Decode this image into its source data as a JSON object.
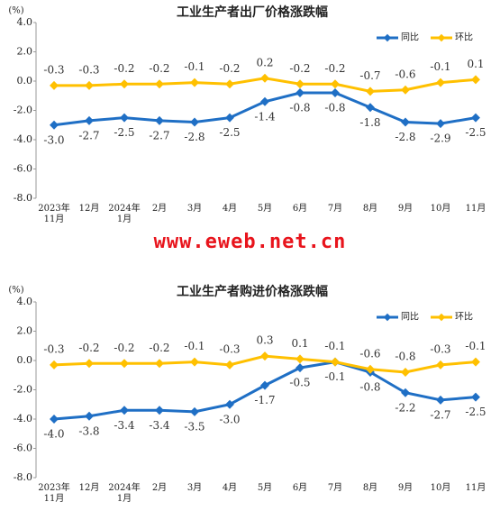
{
  "watermark": "www.eweb.net.cn",
  "chart_data": [
    {
      "type": "line",
      "title": "工业生产者出厂价格涨跌幅",
      "y_label": "(%)",
      "categories": [
        "2023年\n11月",
        "12月",
        "2024年\n1月",
        "2月",
        "3月",
        "4月",
        "5月",
        "6月",
        "7月",
        "8月",
        "9月",
        "10月",
        "11月"
      ],
      "ylim": [
        -8,
        4
      ],
      "yticks": [
        {
          "value": 4,
          "label": "4.0"
        },
        {
          "value": 2,
          "label": "2.0"
        },
        {
          "value": 0,
          "label": "0.0"
        },
        {
          "value": -2,
          "label": "-2.0"
        },
        {
          "value": -4,
          "label": "-4.0"
        },
        {
          "value": -6,
          "label": "-6.0"
        },
        {
          "value": -8,
          "label": "-8.0"
        }
      ],
      "grid": false,
      "legend": "top-right",
      "series": [
        {
          "name": "同比",
          "color": "#1f6fc5",
          "label_position": "below",
          "values": [
            -3.0,
            -2.7,
            -2.5,
            -2.7,
            -2.8,
            -2.5,
            -1.4,
            -0.8,
            -0.8,
            -1.8,
            -2.8,
            -2.9,
            -2.5
          ],
          "value_labels": [
            "-3.0",
            "-2.7",
            "-2.5",
            "-2.7",
            "-2.8",
            "-2.5",
            "-1.4",
            "-0.8",
            "-0.8",
            "-1.8",
            "-2.8",
            "-2.9",
            "-2.5"
          ]
        },
        {
          "name": "环比",
          "color": "#ffc000",
          "label_position": "above",
          "values": [
            -0.3,
            -0.3,
            -0.2,
            -0.2,
            -0.1,
            -0.2,
            0.2,
            -0.2,
            -0.2,
            -0.7,
            -0.6,
            -0.1,
            0.1
          ],
          "value_labels": [
            "-0.3",
            "-0.3",
            "-0.2",
            "-0.2",
            "-0.1",
            "-0.2",
            "0.2",
            "-0.2",
            "-0.2",
            "-0.7",
            "-0.6",
            "-0.1",
            "0.1"
          ]
        }
      ]
    },
    {
      "type": "line",
      "title": "工业生产者购进价格涨跌幅",
      "y_label": "(%)",
      "categories": [
        "2023年\n11月",
        "12月",
        "2024年\n1月",
        "2月",
        "3月",
        "4月",
        "5月",
        "6月",
        "7月",
        "8月",
        "9月",
        "10月",
        "11月"
      ],
      "ylim": [
        -8,
        4
      ],
      "yticks": [
        {
          "value": 4,
          "label": "4.0"
        },
        {
          "value": 2,
          "label": "2.0"
        },
        {
          "value": 0,
          "label": "0.0"
        },
        {
          "value": -2,
          "label": "-2.0"
        },
        {
          "value": -4,
          "label": "-4.0"
        },
        {
          "value": -6,
          "label": "-6.0"
        },
        {
          "value": -8,
          "label": "-8.0"
        }
      ],
      "grid": false,
      "legend": "top-right",
      "series": [
        {
          "name": "同比",
          "color": "#1f6fc5",
          "label_position": "below",
          "values": [
            -4.0,
            -3.8,
            -3.4,
            -3.4,
            -3.5,
            -3.0,
            -1.7,
            -0.5,
            -0.1,
            -0.8,
            -2.2,
            -2.7,
            -2.5
          ],
          "value_labels": [
            "-4.0",
            "-3.8",
            "-3.4",
            "-3.4",
            "-3.5",
            "-3.0",
            "-1.7",
            "-0.5",
            "-0.1",
            "-0.8",
            "-2.2",
            "-2.7",
            "-2.5"
          ]
        },
        {
          "name": "环比",
          "color": "#ffc000",
          "label_position": "above",
          "values": [
            -0.3,
            -0.2,
            -0.2,
            -0.2,
            -0.1,
            -0.3,
            0.3,
            0.1,
            -0.1,
            -0.6,
            -0.8,
            -0.3,
            -0.1
          ],
          "value_labels": [
            "-0.3",
            "-0.2",
            "-0.2",
            "-0.2",
            "-0.1",
            "-0.3",
            "0.3",
            "0.1",
            "-0.1",
            "-0.6",
            "-0.8",
            "-0.3",
            "-0.1"
          ]
        }
      ]
    }
  ]
}
